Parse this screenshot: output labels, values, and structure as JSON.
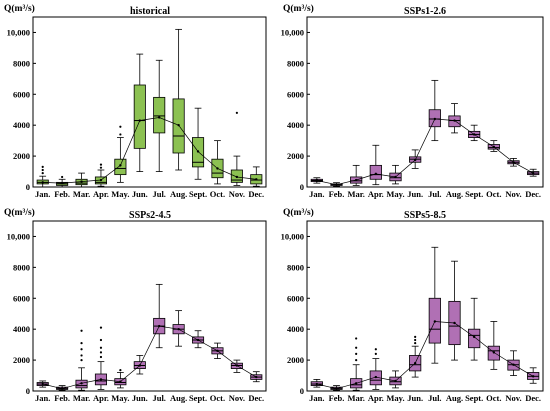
{
  "figure": {
    "colors": {
      "historical": "#8cc152",
      "projection": "#b070b4",
      "stroke": "#000000"
    }
  },
  "chart_data": [
    {
      "type": "box",
      "title": "historical",
      "ylabel": "Q(m³/s)",
      "ylim": [
        0,
        11000
      ],
      "yticks": [
        0,
        2000,
        4000,
        6000,
        8000,
        10000
      ],
      "ytick_labels": [
        "0",
        "2000",
        "4000",
        "6000",
        "8000",
        "10,000"
      ],
      "categories": [
        "Jan.",
        "Feb.",
        "Mar.",
        "Apr.",
        "May.",
        "Jun.",
        "Jul.",
        "Aug.",
        "Sept.",
        "Oct.",
        "Nov.",
        "Dec."
      ],
      "color": "#8cc152",
      "boxes": [
        {
          "min": 0,
          "q1": 200,
          "median": 300,
          "q3": 450,
          "max": 700,
          "outliers": [
            900,
            1100,
            1300
          ]
        },
        {
          "min": 0,
          "q1": 100,
          "median": 200,
          "q3": 300,
          "max": 500,
          "outliers": [
            650
          ]
        },
        {
          "min": 0,
          "q1": 150,
          "median": 250,
          "q3": 500,
          "max": 900,
          "outliers": []
        },
        {
          "min": 50,
          "q1": 200,
          "median": 300,
          "q3": 650,
          "max": 1100,
          "outliers": [
            1250,
            1450
          ]
        },
        {
          "min": 300,
          "q1": 800,
          "median": 1200,
          "q3": 1800,
          "max": 3200,
          "outliers": [
            3400,
            3900
          ]
        },
        {
          "min": 1000,
          "q1": 2500,
          "median": 4300,
          "q3": 6600,
          "max": 8600,
          "outliers": []
        },
        {
          "min": 1000,
          "q1": 3500,
          "median": 4600,
          "q3": 5800,
          "max": 8200,
          "outliers": []
        },
        {
          "min": 1100,
          "q1": 2200,
          "median": 3300,
          "q3": 5700,
          "max": 10200,
          "outliers": []
        },
        {
          "min": 500,
          "q1": 1300,
          "median": 1600,
          "q3": 3200,
          "max": 5100,
          "outliers": []
        },
        {
          "min": 200,
          "q1": 600,
          "median": 900,
          "q3": 1800,
          "max": 3000,
          "outliers": []
        },
        {
          "min": 100,
          "q1": 300,
          "median": 450,
          "q3": 1100,
          "max": 2000,
          "outliers": [
            4800
          ]
        },
        {
          "min": 50,
          "q1": 200,
          "median": 450,
          "q3": 800,
          "max": 1300,
          "outliers": []
        }
      ],
      "mean_line": [
        300,
        250,
        350,
        450,
        1400,
        4300,
        4500,
        4000,
        2300,
        1200,
        650,
        500
      ]
    },
    {
      "type": "box",
      "title": "SSPs1-2.6",
      "ylabel": "Q(m³/s)",
      "ylim": [
        0,
        11000
      ],
      "yticks": [
        0,
        2000,
        4000,
        6000,
        8000,
        10000
      ],
      "ytick_labels": [
        "0",
        "2000",
        "4000",
        "6000",
        "8000",
        "10,000"
      ],
      "categories": [
        "Jan.",
        "Feb.",
        "Mar.",
        "Apr.",
        "May.",
        "Jun.",
        "Jul.",
        "Aug.",
        "Sept.",
        "Oct.",
        "Nov.",
        "Dec."
      ],
      "color": "#b070b4",
      "boxes": [
        {
          "min": 250,
          "q1": 350,
          "median": 420,
          "q3": 500,
          "max": 600,
          "outliers": []
        },
        {
          "min": 50,
          "q1": 100,
          "median": 150,
          "q3": 200,
          "max": 280,
          "outliers": []
        },
        {
          "min": 100,
          "q1": 250,
          "median": 400,
          "q3": 650,
          "max": 1400,
          "outliers": []
        },
        {
          "min": 150,
          "q1": 500,
          "median": 800,
          "q3": 1400,
          "max": 2700,
          "outliers": []
        },
        {
          "min": 200,
          "q1": 400,
          "median": 600,
          "q3": 900,
          "max": 1400,
          "outliers": []
        },
        {
          "min": 1200,
          "q1": 1600,
          "median": 1800,
          "q3": 1950,
          "max": 2400,
          "outliers": []
        },
        {
          "min": 3000,
          "q1": 3900,
          "median": 4400,
          "q3": 5000,
          "max": 6900,
          "outliers": []
        },
        {
          "min": 3500,
          "q1": 3900,
          "median": 4300,
          "q3": 4600,
          "max": 5400,
          "outliers": []
        },
        {
          "min": 3000,
          "q1": 3200,
          "median": 3400,
          "q3": 3600,
          "max": 4000,
          "outliers": []
        },
        {
          "min": 2300,
          "q1": 2450,
          "median": 2550,
          "q3": 2750,
          "max": 3000,
          "outliers": []
        },
        {
          "min": 1350,
          "q1": 1500,
          "median": 1600,
          "q3": 1700,
          "max": 1850,
          "outliers": []
        },
        {
          "min": 700,
          "q1": 800,
          "median": 900,
          "q3": 1000,
          "max": 1150,
          "outliers": []
        }
      ],
      "mean_line": [
        420,
        150,
        450,
        850,
        650,
        1750,
        4400,
        4300,
        3400,
        2600,
        1600,
        900
      ]
    },
    {
      "type": "box",
      "title": "SSPs2-4.5",
      "ylabel": "Q(m³/s)",
      "ylim": [
        0,
        11000
      ],
      "yticks": [
        0,
        2000,
        4000,
        6000,
        8000,
        10000
      ],
      "ytick_labels": [
        "0",
        "2000",
        "4000",
        "6000",
        "8000",
        "10,000"
      ],
      "categories": [
        "Jan.",
        "Feb.",
        "Mar.",
        "Apr.",
        "May.",
        "Jun.",
        "Jul.",
        "Aug.",
        "Sept.",
        "Oct.",
        "Nov.",
        "Dec."
      ],
      "color": "#b070b4",
      "boxes": [
        {
          "min": 250,
          "q1": 350,
          "median": 450,
          "q3": 550,
          "max": 650,
          "outliers": []
        },
        {
          "min": 50,
          "q1": 100,
          "median": 150,
          "q3": 250,
          "max": 350,
          "outliers": []
        },
        {
          "min": 50,
          "q1": 200,
          "median": 350,
          "q3": 700,
          "max": 1500,
          "outliers": [
            2000,
            2300,
            2700,
            3100,
            3900
          ]
        },
        {
          "min": 100,
          "q1": 400,
          "median": 650,
          "q3": 1100,
          "max": 1900,
          "outliers": [
            2200,
            2500,
            2800,
            3300,
            4100
          ]
        },
        {
          "min": 200,
          "q1": 400,
          "median": 550,
          "q3": 800,
          "max": 1200,
          "outliers": [
            1350
          ]
        },
        {
          "min": 1100,
          "q1": 1450,
          "median": 1650,
          "q3": 1900,
          "max": 2300,
          "outliers": []
        },
        {
          "min": 2800,
          "q1": 3700,
          "median": 4200,
          "q3": 4700,
          "max": 6900,
          "outliers": []
        },
        {
          "min": 2900,
          "q1": 3700,
          "median": 4000,
          "q3": 4300,
          "max": 5200,
          "outliers": []
        },
        {
          "min": 2800,
          "q1": 3100,
          "median": 3300,
          "q3": 3500,
          "max": 3900,
          "outliers": []
        },
        {
          "min": 2100,
          "q1": 2400,
          "median": 2600,
          "q3": 2800,
          "max": 3100,
          "outliers": []
        },
        {
          "min": 1200,
          "q1": 1450,
          "median": 1650,
          "q3": 1800,
          "max": 2000,
          "outliers": []
        },
        {
          "min": 600,
          "q1": 750,
          "median": 900,
          "q3": 1050,
          "max": 1250,
          "outliers": []
        }
      ],
      "mean_line": [
        450,
        150,
        500,
        750,
        600,
        1650,
        4200,
        4000,
        3300,
        2600,
        1650,
        900
      ]
    },
    {
      "type": "box",
      "title": "SSPs5-8.5",
      "ylabel": "Q(m³/s)",
      "ylim": [
        0,
        11000
      ],
      "yticks": [
        0,
        2000,
        4000,
        6000,
        8000,
        10000
      ],
      "ytick_labels": [
        "0",
        "2000",
        "4000",
        "6000",
        "8000",
        "10,000"
      ],
      "categories": [
        "Jan.",
        "Feb.",
        "Mar.",
        "Apr.",
        "May.",
        "Jun.",
        "Jul.",
        "Aug.",
        "Sept.",
        "Oct.",
        "Nov.",
        "Dec."
      ],
      "color": "#b070b4",
      "boxes": [
        {
          "min": 250,
          "q1": 350,
          "median": 450,
          "q3": 600,
          "max": 750,
          "outliers": []
        },
        {
          "min": 50,
          "q1": 100,
          "median": 150,
          "q3": 250,
          "max": 350,
          "outliers": []
        },
        {
          "min": 50,
          "q1": 200,
          "median": 400,
          "q3": 800,
          "max": 1700,
          "outliers": [
            2000,
            2400,
            2800,
            3400
          ]
        },
        {
          "min": 100,
          "q1": 400,
          "median": 700,
          "q3": 1300,
          "max": 2100,
          "outliers": [
            2400,
            2700
          ]
        },
        {
          "min": 200,
          "q1": 400,
          "median": 600,
          "q3": 900,
          "max": 1300,
          "outliers": []
        },
        {
          "min": 900,
          "q1": 1300,
          "median": 1700,
          "q3": 2300,
          "max": 2900,
          "outliers": [
            3100,
            3300,
            3500
          ]
        },
        {
          "min": 1800,
          "q1": 3100,
          "median": 4000,
          "q3": 6000,
          "max": 9300,
          "outliers": []
        },
        {
          "min": 2000,
          "q1": 3000,
          "median": 4200,
          "q3": 5800,
          "max": 8400,
          "outliers": []
        },
        {
          "min": 2000,
          "q1": 2800,
          "median": 3600,
          "q3": 4000,
          "max": 6000,
          "outliers": []
        },
        {
          "min": 1400,
          "q1": 2000,
          "median": 2600,
          "q3": 2900,
          "max": 4500,
          "outliers": []
        },
        {
          "min": 1000,
          "q1": 1350,
          "median": 1700,
          "q3": 2000,
          "max": 2600,
          "outliers": []
        },
        {
          "min": 500,
          "q1": 750,
          "median": 950,
          "q3": 1200,
          "max": 1500,
          "outliers": []
        }
      ],
      "mean_line": [
        450,
        150,
        500,
        900,
        650,
        1800,
        4500,
        4400,
        3500,
        2500,
        1700,
        950
      ]
    }
  ]
}
